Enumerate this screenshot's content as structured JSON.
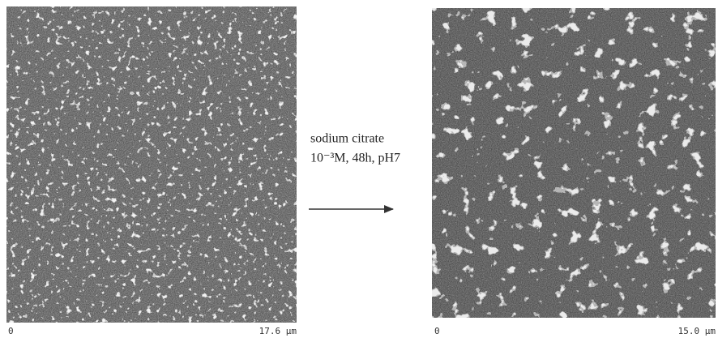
{
  "panels": [
    {
      "scale_start": "0",
      "scale_end": "17.6 µm"
    },
    {
      "scale_start": "0",
      "scale_end": "15.0 µm"
    }
  ],
  "arrow_label": {
    "line1": "sodium citrate",
    "line2": "10⁻³M,  48h, pH7"
  }
}
